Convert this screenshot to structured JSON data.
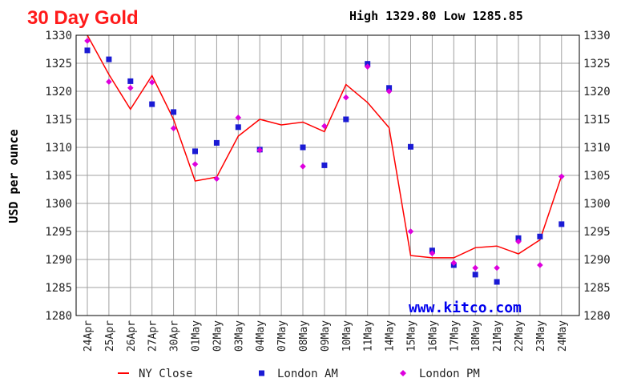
{
  "header": {
    "title": "30 Day Gold",
    "high_low": "High 1329.80 Low 1285.85"
  },
  "watermark": "www.kitco.com",
  "colors": {
    "title": "#ff1a1a",
    "ny_close": "#ff0000",
    "london_am": "#1a1ad4",
    "london_pm": "#dd00dd",
    "grid": "#a0a0a0",
    "watermark": "#0000ee"
  },
  "chart_data": {
    "type": "line",
    "title": "30 Day Gold",
    "xlabel": "",
    "ylabel": "USD per ounce",
    "ylim": [
      1280,
      1330
    ],
    "yticks": [
      1280,
      1285,
      1290,
      1295,
      1300,
      1305,
      1310,
      1315,
      1320,
      1325,
      1330
    ],
    "y_tick_labels_both_sides": true,
    "grid": true,
    "legend_position": "bottom",
    "categories": [
      "24Apr",
      "25Apr",
      "26Apr",
      "27Apr",
      "30Apr",
      "01May",
      "02May",
      "03May",
      "04May",
      "07May",
      "08May",
      "09May",
      "10May",
      "11May",
      "14May",
      "15May",
      "16May",
      "17May",
      "18May",
      "21May",
      "22May",
      "23May",
      "24May"
    ],
    "series": [
      {
        "name": "NY Close",
        "style": "line",
        "values": [
          1330.0,
          1323.0,
          1316.8,
          1322.8,
          1315.0,
          1304.0,
          1304.7,
          1312.0,
          1315.0,
          1314.0,
          1314.5,
          1312.8,
          1321.2,
          1318.0,
          1313.5,
          1290.7,
          1290.3,
          1290.3,
          1292.1,
          1292.4,
          1291.0,
          1293.5,
          1304.9
        ]
      },
      {
        "name": "London AM",
        "style": "square",
        "values": [
          1327.3,
          1325.7,
          1321.8,
          1317.7,
          1316.3,
          1309.3,
          1310.8,
          1313.6,
          1309.6,
          null,
          1310.0,
          1306.8,
          1315.0,
          1324.9,
          1320.6,
          1310.1,
          1291.6,
          1289.0,
          1287.3,
          1286.0,
          1293.8,
          1294.1,
          1296.3
        ]
      },
      {
        "name": "London PM",
        "style": "diamond",
        "values": [
          1329.0,
          1321.7,
          1320.6,
          1321.6,
          1313.4,
          1307.0,
          1304.4,
          1315.3,
          1309.5,
          null,
          1306.6,
          1313.8,
          1318.9,
          1324.4,
          1320.0,
          1295.0,
          1291.1,
          1289.4,
          1288.5,
          1288.5,
          1293.2,
          1289.0,
          1304.8
        ]
      }
    ]
  }
}
